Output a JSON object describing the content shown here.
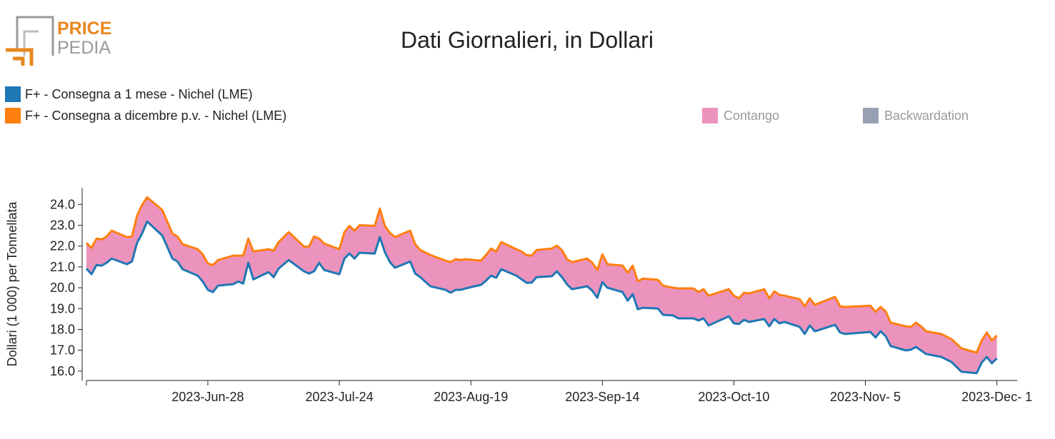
{
  "logo": {
    "line1": "PRICE",
    "line2": "PEDIA"
  },
  "chart_data": {
    "type": "band",
    "title": "Dati Giornalieri, in Dollari",
    "y_label": "Dollari (1 000) per Tonnellata",
    "x": [
      "2023-06-04",
      "2023-06-05",
      "2023-06-06",
      "2023-06-07",
      "2023-06-08",
      "2023-06-09",
      "2023-06-12",
      "2023-06-13",
      "2023-06-14",
      "2023-06-15",
      "2023-06-16",
      "2023-06-19",
      "2023-06-21",
      "2023-06-22",
      "2023-06-23",
      "2023-06-26",
      "2023-06-27",
      "2023-06-28",
      "2023-06-29",
      "2023-06-30",
      "2023-07-03",
      "2023-07-04",
      "2023-07-05",
      "2023-07-06",
      "2023-07-07",
      "2023-07-10",
      "2023-07-11",
      "2023-07-12",
      "2023-07-14",
      "2023-07-17",
      "2023-07-18",
      "2023-07-19",
      "2023-07-20",
      "2023-07-21",
      "2023-07-24",
      "2023-07-25",
      "2023-07-26",
      "2023-07-27",
      "2023-07-28",
      "2023-07-31",
      "2023-08-01",
      "2023-08-02",
      "2023-08-03",
      "2023-08-04",
      "2023-08-07",
      "2023-08-08",
      "2023-08-09",
      "2023-08-11",
      "2023-08-14",
      "2023-08-15",
      "2023-08-16",
      "2023-08-17",
      "2023-08-18",
      "2023-08-21",
      "2023-08-22",
      "2023-08-23",
      "2023-08-24",
      "2023-08-25",
      "2023-08-28",
      "2023-08-29",
      "2023-08-30",
      "2023-08-31",
      "2023-09-01",
      "2023-09-04",
      "2023-09-05",
      "2023-09-06",
      "2023-09-07",
      "2023-09-08",
      "2023-09-11",
      "2023-09-12",
      "2023-09-13",
      "2023-09-14",
      "2023-09-15",
      "2023-09-18",
      "2023-09-19",
      "2023-09-20",
      "2023-09-21",
      "2023-09-22",
      "2023-09-25",
      "2023-09-26",
      "2023-09-28",
      "2023-09-29",
      "2023-10-02",
      "2023-10-03",
      "2023-10-04",
      "2023-10-05",
      "2023-10-09",
      "2023-10-10",
      "2023-10-11",
      "2023-10-12",
      "2023-10-13",
      "2023-10-16",
      "2023-10-17",
      "2023-10-18",
      "2023-10-19",
      "2023-10-20",
      "2023-10-23",
      "2023-10-24",
      "2023-10-25",
      "2023-10-26",
      "2023-10-30",
      "2023-10-31",
      "2023-11-01",
      "2023-11-06",
      "2023-11-07",
      "2023-11-08",
      "2023-11-09",
      "2023-11-10",
      "2023-11-13",
      "2023-11-14",
      "2023-11-15",
      "2023-11-16",
      "2023-11-17",
      "2023-11-20",
      "2023-11-22",
      "2023-11-24",
      "2023-11-27",
      "2023-11-28",
      "2023-11-29",
      "2023-11-30",
      "2023-12-01"
    ],
    "series": [
      {
        "name": "F+ - Consegna a 1 mese - Nichel (LME)",
        "color": "#1f77b4",
        "values": [
          20.92,
          20.65,
          21.09,
          21.06,
          21.2,
          21.4,
          21.13,
          21.26,
          22.15,
          22.6,
          23.18,
          22.5,
          21.4,
          21.26,
          20.89,
          20.58,
          20.3,
          19.9,
          19.79,
          20.1,
          20.17,
          20.3,
          20.2,
          21.2,
          20.4,
          20.75,
          20.51,
          20.92,
          21.33,
          20.79,
          20.68,
          20.79,
          21.2,
          20.85,
          20.65,
          21.4,
          21.64,
          21.4,
          21.68,
          21.64,
          22.43,
          21.71,
          21.23,
          20.96,
          21.26,
          20.68,
          20.51,
          20.07,
          19.9,
          19.76,
          19.9,
          19.9,
          19.97,
          20.14,
          20.34,
          20.58,
          20.48,
          20.89,
          20.58,
          20.41,
          20.24,
          20.24,
          20.51,
          20.55,
          20.79,
          20.51,
          20.17,
          19.93,
          20.07,
          19.86,
          19.52,
          20.27,
          20.0,
          19.79,
          19.38,
          19.69,
          18.97,
          19.04,
          19.0,
          18.7,
          18.67,
          18.53,
          18.53,
          18.43,
          18.53,
          18.19,
          18.63,
          18.29,
          18.26,
          18.46,
          18.36,
          18.5,
          18.15,
          18.5,
          18.29,
          18.36,
          18.12,
          17.78,
          18.19,
          17.91,
          18.22,
          17.85,
          17.78,
          17.88,
          17.61,
          17.91,
          17.68,
          17.2,
          16.99,
          17.03,
          17.16,
          16.99,
          16.82,
          16.68,
          16.44,
          15.97,
          15.9,
          16.41,
          16.68,
          16.38,
          16.61
        ]
      },
      {
        "name": "F+ - Consegna a dicembre p.v. - Nichel (LME)",
        "color": "#ff7f0e",
        "values": [
          22.15,
          21.91,
          22.36,
          22.32,
          22.46,
          22.74,
          22.43,
          22.46,
          23.45,
          23.97,
          24.34,
          23.73,
          22.6,
          22.46,
          22.09,
          21.85,
          21.6,
          21.16,
          21.09,
          21.33,
          21.54,
          21.54,
          21.54,
          22.36,
          21.74,
          21.85,
          21.78,
          22.19,
          22.67,
          21.98,
          21.98,
          22.46,
          22.36,
          22.12,
          21.85,
          22.67,
          22.97,
          22.74,
          23.0,
          22.97,
          23.8,
          22.97,
          22.63,
          22.43,
          22.74,
          22.09,
          21.81,
          21.57,
          21.3,
          21.23,
          21.37,
          21.33,
          21.37,
          21.3,
          21.57,
          21.88,
          21.74,
          22.19,
          21.85,
          21.74,
          21.57,
          21.54,
          21.81,
          21.88,
          22.02,
          21.81,
          21.37,
          21.23,
          21.4,
          21.2,
          20.85,
          21.6,
          21.13,
          21.06,
          20.72,
          21.06,
          20.31,
          20.44,
          20.38,
          20.1,
          20.0,
          19.97,
          19.97,
          19.8,
          19.93,
          19.62,
          19.93,
          19.62,
          19.49,
          19.76,
          19.73,
          19.93,
          19.49,
          19.83,
          19.66,
          19.62,
          19.45,
          19.11,
          19.49,
          19.18,
          19.56,
          19.11,
          19.08,
          19.14,
          18.84,
          19.08,
          18.87,
          18.32,
          18.15,
          18.12,
          18.32,
          18.15,
          17.91,
          17.78,
          17.54,
          17.09,
          16.89,
          17.47,
          17.85,
          17.47,
          17.71
        ]
      }
    ],
    "fill_legend": [
      {
        "name": "Contango",
        "color": "#eb93bd"
      },
      {
        "name": "Backwardation",
        "color": "#98a1b3"
      }
    ],
    "xlim": [
      "2023-06-04",
      "2023-12-05"
    ],
    "xticks": [
      {
        "value": "2023-06-28",
        "label": "2023-Jun-28"
      },
      {
        "value": "2023-07-24",
        "label": "2023-Jul-24"
      },
      {
        "value": "2023-08-19",
        "label": "2023-Aug-19"
      },
      {
        "value": "2023-09-14",
        "label": "2023-Sep-14"
      },
      {
        "value": "2023-10-10",
        "label": "2023-Oct-10"
      },
      {
        "value": "2023-11-05",
        "label": "2023-Nov- 5"
      },
      {
        "value": "2023-12-01",
        "label": "2023-Dec- 1"
      }
    ],
    "ylim": [
      15.55,
      24.8
    ],
    "yticks": [
      {
        "value": 16,
        "label": "16.0"
      },
      {
        "value": 17,
        "label": "17.0"
      },
      {
        "value": 18,
        "label": "18.0"
      },
      {
        "value": 19,
        "label": "19.0"
      },
      {
        "value": 20,
        "label": "20.0"
      },
      {
        "value": 21,
        "label": "21.0"
      },
      {
        "value": 22,
        "label": "22.0"
      },
      {
        "value": 23,
        "label": "23.0"
      },
      {
        "value": 24,
        "label": "24.0"
      }
    ]
  }
}
